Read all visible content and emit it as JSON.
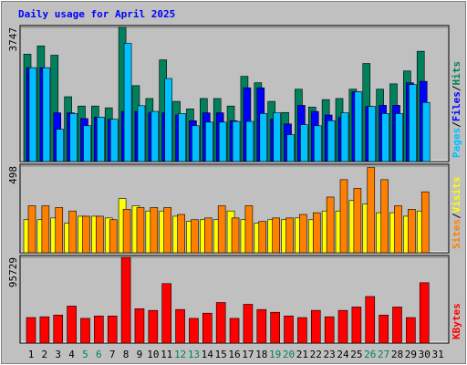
{
  "chart_data": [
    {
      "type": "bar",
      "title": "Daily usage for April 2025",
      "ylim": [
        0,
        3747
      ],
      "yticks": [
        3747
      ],
      "legend_separator": "/",
      "series": [
        {
          "name": "Hits",
          "color": "#00805c",
          "values": [
            3000,
            3230,
            2970,
            1810,
            1550,
            1550,
            1500,
            3747,
            2120,
            1760,
            2840,
            1680,
            1470,
            1760,
            1760,
            1550,
            2380,
            2200,
            1680,
            1370,
            2020,
            1520,
            1730,
            1760,
            2020,
            2740,
            2020,
            2170,
            2530,
            3080,
            null
          ]
        },
        {
          "name": "Files",
          "color": "#0000ff",
          "values": [
            2620,
            2620,
            1360,
            1360,
            1200,
            1240,
            1180,
            1400,
            1400,
            1360,
            1360,
            1300,
            1140,
            1360,
            1360,
            1140,
            2060,
            2060,
            1180,
            1050,
            1570,
            1400,
            1300,
            1230,
            1950,
            1540,
            1570,
            1570,
            2200,
            2240,
            null
          ]
        },
        {
          "name": "Pages",
          "color": "#00c0ff",
          "values": [
            2620,
            2620,
            900,
            1340,
            1000,
            1240,
            1180,
            3300,
            1560,
            1400,
            2320,
            1340,
            1000,
            1100,
            1100,
            1120,
            1120,
            1340,
            1360,
            750,
            1030,
            1000,
            1140,
            1360,
            1950,
            1540,
            1340,
            1340,
            2150,
            1650,
            null
          ]
        }
      ]
    },
    {
      "type": "bar",
      "ylim": [
        0,
        498
      ],
      "yticks": [
        498
      ],
      "legend_separator": "/",
      "series": [
        {
          "name": "Visits",
          "color": "#ffff00",
          "values": [
            190,
            190,
            200,
            170,
            210,
            210,
            200,
            311,
            270,
            240,
            240,
            210,
            180,
            190,
            190,
            240,
            190,
            170,
            190,
            190,
            200,
            190,
            240,
            240,
            300,
            280,
            230,
            230,
            210,
            240,
            null
          ]
        },
        {
          "name": "Sites",
          "color": "#ff8000",
          "values": [
            270,
            270,
            260,
            240,
            210,
            210,
            190,
            250,
            260,
            260,
            260,
            220,
            190,
            200,
            270,
            200,
            270,
            180,
            200,
            200,
            220,
            230,
            320,
            420,
            370,
            490,
            420,
            270,
            250,
            350,
            null
          ]
        }
      ]
    },
    {
      "type": "bar",
      "ylim": [
        0,
        95729
      ],
      "yticks": [
        95729
      ],
      "categories": [
        "1",
        "2",
        "3",
        "4",
        "5",
        "6",
        "7",
        "8",
        "9",
        "10",
        "11",
        "12",
        "13",
        "14",
        "15",
        "16",
        "17",
        "18",
        "19",
        "20",
        "21",
        "22",
        "23",
        "24",
        "25",
        "26",
        "27",
        "28",
        "29",
        "30",
        "31"
      ],
      "category_colors": [
        "#000000",
        "#000000",
        "#000000",
        "#000000",
        "#00805c",
        "#00805c",
        "#000000",
        "#000000",
        "#000000",
        "#000000",
        "#000000",
        "#00805c",
        "#00805c",
        "#000000",
        "#000000",
        "#000000",
        "#000000",
        "#000000",
        "#00805c",
        "#00805c",
        "#000000",
        "#000000",
        "#000000",
        "#000000",
        "#000000",
        "#00805c",
        "#00805c",
        "#000000",
        "#000000",
        "#000000",
        "#000000"
      ],
      "series": [
        {
          "name": "KBytes",
          "color": "#ff0000",
          "values": [
            28500,
            29400,
            31300,
            41300,
            27600,
            30300,
            30300,
            95729,
            38400,
            36500,
            66400,
            37500,
            27600,
            33400,
            45300,
            27600,
            43300,
            37500,
            34400,
            30300,
            28500,
            36500,
            29400,
            36500,
            40300,
            52000,
            31300,
            40300,
            28500,
            67400,
            null
          ]
        }
      ]
    }
  ]
}
